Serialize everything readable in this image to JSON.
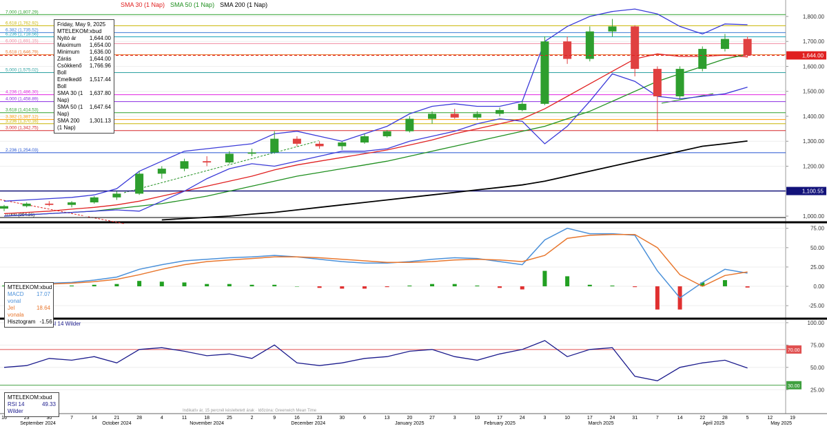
{
  "chart_data": [
    {
      "type": "candlestick",
      "categories": [
        "16",
        "23",
        "30",
        "7",
        "14",
        "21",
        "28",
        "4",
        "11",
        "18",
        "25",
        "2",
        "9",
        "16",
        "23",
        "30",
        "6",
        "13",
        "20",
        "27",
        "3",
        "10",
        "17",
        "24",
        "3",
        "10",
        "17",
        "24",
        "31",
        "7",
        "14",
        "22",
        "28",
        "5",
        "12",
        "19"
      ],
      "months": [
        "September 2024",
        "October 2024",
        "November 2024",
        "December 2024",
        "January 2025",
        "February 2025",
        "March 2025",
        "April 2025",
        "May 2025"
      ],
      "open": [
        1030,
        1040,
        1050,
        1045,
        1055,
        1075,
        1090,
        1170,
        1190,
        1220,
        1215,
        1250,
        1255,
        1310,
        1290,
        1280,
        1295,
        1320,
        1340,
        1390,
        1410,
        1395,
        1410,
        1425,
        1450,
        1700,
        1630,
        1740,
        1760,
        1590,
        1480,
        1590,
        1670,
        1710,
        null,
        null
      ],
      "high": [
        1045,
        1055,
        1060,
        1060,
        1080,
        1100,
        1180,
        1200,
        1230,
        1240,
        1260,
        1270,
        1340,
        1320,
        1300,
        1300,
        1330,
        1345,
        1400,
        1420,
        1430,
        1420,
        1435,
        1460,
        1720,
        1720,
        1760,
        1790,
        1765,
        1600,
        1600,
        1680,
        1730,
        1720,
        null,
        null
      ],
      "low": [
        1020,
        1035,
        1040,
        1035,
        1050,
        1065,
        1085,
        1150,
        1180,
        1200,
        1210,
        1240,
        1250,
        1280,
        1270,
        1265,
        1290,
        1315,
        1335,
        1370,
        1390,
        1385,
        1400,
        1420,
        1445,
        1610,
        1620,
        1720,
        1560,
        1340,
        1470,
        1580,
        1660,
        1636,
        null,
        null
      ],
      "close": [
        1040,
        1050,
        1045,
        1055,
        1075,
        1090,
        1170,
        1190,
        1220,
        1215,
        1250,
        1255,
        1310,
        1290,
        1280,
        1295,
        1320,
        1340,
        1390,
        1410,
        1395,
        1410,
        1425,
        1450,
        1700,
        1630,
        1740,
        1760,
        1590,
        1480,
        1590,
        1670,
        1710,
        1644,
        null,
        null
      ],
      "series": [
        {
          "name": "SMA 30 (1 Nap)",
          "color": "#e02020",
          "values": [
            1010,
            1015,
            1020,
            1028,
            1035,
            1045,
            1060,
            1080,
            1100,
            1120,
            1140,
            1160,
            1185,
            1205,
            1220,
            1235,
            1250,
            1265,
            1285,
            1305,
            1330,
            1350,
            1370,
            1390,
            1430,
            1480,
            1530,
            1580,
            1630,
            1650,
            1640,
            1640,
            1645,
            1638,
            null,
            null
          ]
        },
        {
          "name": "SMA 50 (1 Nap)",
          "color": "#1f8f1f",
          "values": [
            1000,
            1005,
            1010,
            1015,
            1020,
            1030,
            1040,
            1050,
            1065,
            1080,
            1100,
            1120,
            1140,
            1160,
            1175,
            1190,
            1205,
            1220,
            1240,
            1260,
            1280,
            1300,
            1320,
            1340,
            1360,
            1390,
            1420,
            1460,
            1500,
            1540,
            1570,
            1600,
            1630,
            1648,
            null,
            null
          ]
        },
        {
          "name": "SMA 200 (1 Nap)",
          "color": "#000000",
          "values": [
            null,
            null,
            null,
            null,
            null,
            null,
            null,
            985,
            990,
            995,
            1000,
            1008,
            1015,
            1025,
            1035,
            1045,
            1055,
            1065,
            1075,
            1085,
            1095,
            1105,
            1115,
            1125,
            1140,
            1160,
            1180,
            1200,
            1220,
            1240,
            1260,
            1280,
            1290,
            1301,
            null,
            null
          ]
        },
        {
          "name": "Csökkenő Boll",
          "color": "#3a3ad8",
          "values": [
            1060,
            1065,
            1070,
            1075,
            1085,
            1110,
            1180,
            1220,
            1260,
            1270,
            1280,
            1290,
            1330,
            1340,
            1320,
            1300,
            1330,
            1360,
            1410,
            1440,
            1450,
            1440,
            1440,
            1460,
            1700,
            1760,
            1800,
            1820,
            1830,
            1810,
            1760,
            1730,
            1770,
            1767,
            null,
            null
          ]
        },
        {
          "name": "Emelkedő Boll",
          "color": "#3a3ad8",
          "values": [
            1000,
            1005,
            1010,
            1015,
            1020,
            1025,
            1020,
            1060,
            1100,
            1150,
            1190,
            1210,
            1200,
            1220,
            1240,
            1260,
            1260,
            1270,
            1300,
            1320,
            1340,
            1370,
            1390,
            1380,
            1290,
            1360,
            1460,
            1570,
            1540,
            1480,
            1470,
            1480,
            1490,
            1517,
            null,
            null
          ]
        }
      ],
      "ylim": [
        978,
        1866
      ],
      "yticks": [
        {
          "value": 1000,
          "label": "1,000.00"
        },
        {
          "value": 1100,
          "label": "1,100.00"
        },
        {
          "value": 1200,
          "label": "1,200.00"
        },
        {
          "value": 1300,
          "label": "1,300.00"
        },
        {
          "value": 1400,
          "label": "1,400.00"
        },
        {
          "value": 1500,
          "label": "1,500.00"
        },
        {
          "value": 1600,
          "label": "1,600.00"
        },
        {
          "value": 1700,
          "label": "1,700.00"
        },
        {
          "value": 1800,
          "label": "1,800.00"
        }
      ],
      "levels": [
        {
          "label": "7.000 (1,807.29)",
          "value": 1807.29,
          "color": "#2ca02c"
        },
        {
          "label": "6.618 (1,762.92)",
          "value": 1762.92,
          "color": "#c8b400"
        },
        {
          "label": "6.382 (1,735.52)",
          "value": 1735.52,
          "color": "#3a7bd5"
        },
        {
          "label": "6.236 (1,718.56)",
          "value": 1718.56,
          "color": "#17a2b8"
        },
        {
          "label": "6.000 (1,691.15)",
          "value": 1691.15,
          "color": "#f08aa0"
        },
        {
          "label": "5.618 (1,646.79)",
          "value": 1646.79,
          "color": "#e8772e"
        },
        {
          "label": "5.000 (1,575.02)",
          "value": 1575.02,
          "color": "#2aa0a0"
        },
        {
          "label": "4.236 (1,486.30)",
          "value": 1486.3,
          "color": "#e020e0"
        },
        {
          "label": "4.000 (1,458.89)",
          "value": 1458.89,
          "color": "#8a2be2"
        },
        {
          "label": "3.618 (1,414.53)",
          "value": 1414.53,
          "color": "#2ca02c"
        },
        {
          "label": "3.382 (1,387.12)",
          "value": 1387.12,
          "color": "#ff9900"
        },
        {
          "label": "3.236 (1,370.16)",
          "value": 1370.16,
          "color": "#c8b400"
        },
        {
          "label": "3.000 (1,342.75)",
          "value": 1342.75,
          "color": "#d62728"
        },
        {
          "label": "2.236 (1,254.03)",
          "value": 1254.03,
          "color": "#2050d0"
        },
        {
          "label": "0.000 (994.36)",
          "value": 994.36,
          "color": "#000000"
        }
      ],
      "hline": {
        "value": 1100.55,
        "label": "1,100.55",
        "color": "#12127a"
      },
      "last": {
        "value": 1644,
        "label": "1,644.00",
        "color": "#e02020"
      },
      "info": {
        "date": "Friday, May 9, 2025",
        "symbol": "MTELEKOM:xbud",
        "rows": [
          [
            "Nyitó ár",
            "1,644.00"
          ],
          [
            "Maximum",
            "1,654.00"
          ],
          [
            "Minimum",
            "1,636.00"
          ],
          [
            "Zárás",
            "1,644.00"
          ],
          [
            "Csökkenő Boll",
            "1,766.96"
          ],
          [
            "Emelkedő Boll",
            "1,517.44"
          ],
          [
            "SMA 30 (1 Nap)",
            "1,637.80"
          ],
          [
            "SMA 50 (1 Nap)",
            "1,647.64"
          ],
          [
            "SMA 200 (1 Nap)",
            "1,301.13"
          ]
        ]
      }
    },
    {
      "type": "macd",
      "series": [
        {
          "name": "MACD vonal",
          "color": "#4a90d9",
          "values": [
            2,
            3,
            4,
            5,
            8,
            12,
            22,
            28,
            33,
            35,
            37,
            38,
            40,
            38,
            35,
            32,
            30,
            30,
            32,
            35,
            37,
            36,
            32,
            28,
            60,
            75,
            68,
            68,
            66,
            20,
            -15,
            5,
            22,
            17.07,
            null,
            null
          ]
        },
        {
          "name": "Jel vonala",
          "color": "#e8772e",
          "values": [
            1,
            2,
            3,
            4,
            6,
            9,
            15,
            22,
            28,
            32,
            34,
            36,
            38,
            38,
            37,
            35,
            33,
            31,
            31,
            32,
            34,
            35,
            34,
            32,
            40,
            62,
            66,
            67,
            67,
            50,
            15,
            0,
            14,
            18.64,
            null,
            null
          ]
        },
        {
          "name": "Hisztogram",
          "values": [
            1,
            1,
            1,
            1,
            2,
            3,
            7,
            6,
            5,
            3,
            3,
            2,
            2,
            0,
            -2,
            -3,
            -3,
            -1,
            1,
            3,
            3,
            1,
            -2,
            -4,
            20,
            13,
            2,
            1,
            -1,
            -30,
            -30,
            5,
            8,
            -1.56,
            null,
            null
          ]
        }
      ],
      "ylim": [
        -40,
        81
      ],
      "yticks": [
        {
          "value": 75,
          "label": "75.00"
        },
        {
          "value": 50,
          "label": "50.00"
        },
        {
          "value": 25,
          "label": "25.00"
        },
        {
          "value": 0,
          "label": "0.00"
        },
        {
          "value": -25,
          "label": "-25.00"
        }
      ],
      "info": {
        "symbol": "MTELEKOM:xbud",
        "rows": [
          [
            "MACD vonal",
            "17.07"
          ],
          [
            "Jel vonala",
            "18.64"
          ],
          [
            "Hisztogram",
            "-1.56"
          ]
        ]
      }
    },
    {
      "type": "line",
      "series": [
        {
          "name": "RSI 14 Wilder",
          "color": "#1a1a8c",
          "values": [
            50,
            52,
            60,
            58,
            62,
            55,
            70,
            72,
            68,
            63,
            65,
            60,
            75,
            55,
            52,
            55,
            60,
            62,
            68,
            70,
            62,
            58,
            65,
            70,
            80,
            62,
            70,
            72,
            40,
            35,
            50,
            55,
            58,
            49.33,
            null,
            null
          ]
        }
      ],
      "ylim": [
        -1,
        103
      ],
      "yticks": [
        {
          "value": 100,
          "label": "100.00"
        },
        {
          "value": 75,
          "label": "75.00"
        },
        {
          "value": 50,
          "label": "50.00"
        },
        {
          "value": 25,
          "label": "25.00"
        }
      ],
      "levels": [
        {
          "label": "70.00",
          "value": 70,
          "color": "#e05050"
        },
        {
          "label": "30.00",
          "value": 30,
          "color": "#40a040"
        }
      ],
      "info": {
        "symbol": "MTELEKOM:xbud",
        "rows": [
          [
            "RSI 14 Wilder",
            "49.33"
          ]
        ]
      }
    }
  ],
  "note": "Indikatív ár, 15 percnél késleltetett árak · Időzóna: Greenwich Mean Time"
}
